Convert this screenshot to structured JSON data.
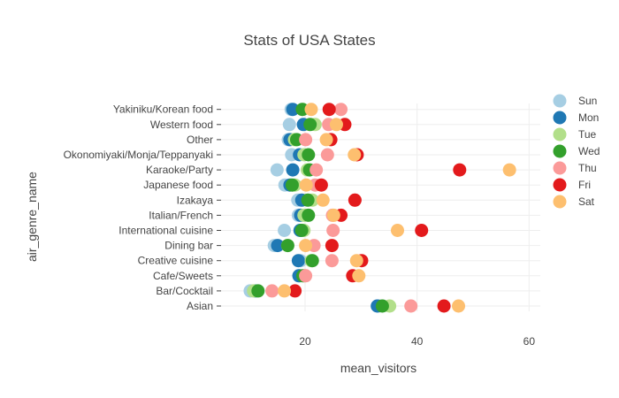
{
  "chart_data": {
    "type": "scatter",
    "title": "Stats of USA States",
    "xlabel": "mean_visitors",
    "ylabel": "air_genre_name",
    "xlim": [
      5,
      62
    ],
    "x_ticks": [
      20,
      40,
      60
    ],
    "grid": true,
    "legend_position": "right",
    "categories": [
      "Asian",
      "Bar/Cocktail",
      "Cafe/Sweets",
      "Creative cuisine",
      "Dining bar",
      "International cuisine",
      "Italian/French",
      "Izakaya",
      "Japanese food",
      "Karaoke/Party",
      "Okonomiyaki/Monja/Teppanyaki",
      "Other",
      "Western food",
      "Yakiniku/Korean food"
    ],
    "series": [
      {
        "name": "Sun",
        "color": "#a6cee3",
        "values": [
          33.2,
          10.2,
          19.0,
          19.2,
          14.5,
          16.3,
          18.8,
          18.7,
          16.4,
          15.0,
          17.6,
          17.0,
          17.2,
          17.5
        ]
      },
      {
        "name": "Mon",
        "color": "#1f78b4",
        "values": [
          32.9,
          11.1,
          18.9,
          18.8,
          15.1,
          19.1,
          19.2,
          19.4,
          17.3,
          17.8,
          19.0,
          17.3,
          19.7,
          17.8
        ]
      },
      {
        "name": "Tue",
        "color": "#b2df8a",
        "values": [
          35.1,
          10.8,
          19.9,
          21.1,
          16.9,
          19.8,
          19.8,
          21.3,
          18.2,
          20.4,
          19.8,
          18.1,
          21.8,
          19.6
        ]
      },
      {
        "name": "Wed",
        "color": "#33a02c",
        "values": [
          33.8,
          11.6,
          19.6,
          21.3,
          16.9,
          19.4,
          20.6,
          20.5,
          17.7,
          20.8,
          20.6,
          18.5,
          20.9,
          19.5
        ]
      },
      {
        "name": "Thu",
        "color": "#fb9a99",
        "values": [
          38.9,
          14.1,
          20.1,
          24.8,
          21.6,
          25.0,
          24.9,
          28.9,
          21.8,
          22.0,
          24.0,
          20.1,
          24.2,
          26.4
        ]
      },
      {
        "name": "Fri",
        "color": "#e31a1c",
        "values": [
          44.8,
          18.2,
          28.5,
          30.1,
          24.8,
          40.8,
          26.4,
          28.9,
          22.9,
          47.6,
          29.3,
          24.6,
          27.1,
          24.3
        ]
      },
      {
        "name": "Sat",
        "color": "#fdbf6f",
        "values": [
          47.4,
          16.3,
          29.6,
          29.2,
          20.1,
          36.5,
          25.1,
          23.2,
          20.2,
          56.5,
          28.8,
          23.8,
          25.6,
          21.1
        ]
      }
    ]
  }
}
